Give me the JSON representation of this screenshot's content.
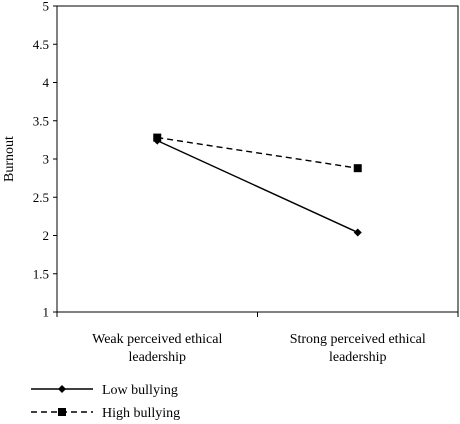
{
  "chart_data": {
    "type": "line",
    "title": "",
    "xlabel": "",
    "ylabel": "Burnout",
    "ylim": [
      1,
      5
    ],
    "yticks": [
      "1",
      "1.5",
      "2",
      "2.5",
      "3",
      "3.5",
      "4",
      "4.5",
      "5"
    ],
    "categories": [
      [
        "Weak perceived ethical",
        "leadership"
      ],
      [
        "Strong perceived ethical",
        "leadership"
      ]
    ],
    "grid": false,
    "legend": "bottom-left",
    "series": [
      {
        "name": "Low bullying",
        "values": [
          3.24,
          2.04
        ],
        "marker": "diamond",
        "dash": "solid",
        "color": "#000000"
      },
      {
        "name": "High bullying",
        "values": [
          3.28,
          2.88
        ],
        "marker": "square",
        "dash": "dashed",
        "color": "#000000"
      }
    ]
  }
}
